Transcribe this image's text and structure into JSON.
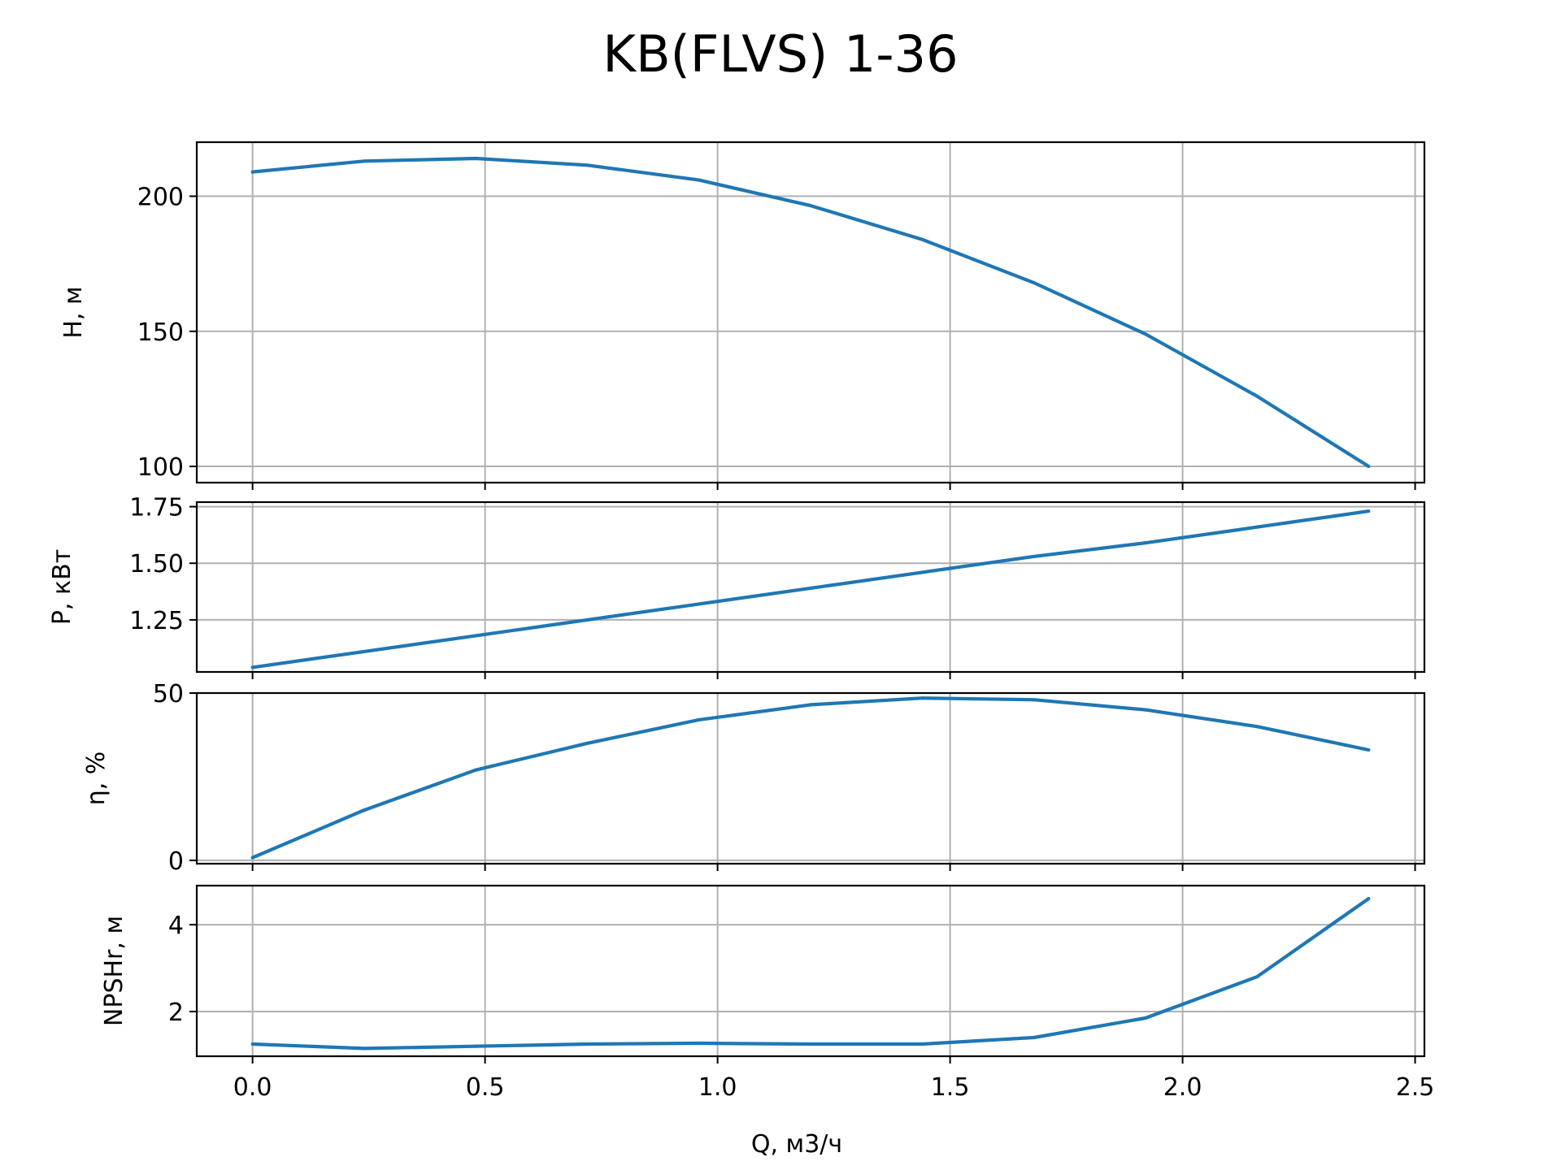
{
  "chart_data": {
    "type": "line",
    "title": "KB(FLVS) 1-36",
    "xlabel": "Q, м3/ч",
    "x_ticks": [
      "0.0",
      "0.5",
      "1.0",
      "1.5",
      "2.0",
      "2.5"
    ],
    "xlim": [
      -0.12,
      2.52
    ],
    "grid": true,
    "line_color": "#1f77b4",
    "x": [
      0.0,
      0.24,
      0.48,
      0.72,
      0.96,
      1.2,
      1.44,
      1.68,
      1.92,
      2.16,
      2.4
    ],
    "panels": [
      {
        "ylabel": "H, м",
        "ylim": [
          94,
          220
        ],
        "y_ticks": [
          "100",
          "150",
          "200"
        ],
        "values": [
          209,
          213,
          214,
          211.5,
          206,
          196.5,
          184,
          168,
          149,
          126,
          100
        ]
      },
      {
        "ylabel": "P, кВт",
        "ylim": [
          1.02,
          1.77
        ],
        "y_ticks": [
          "1.25",
          "1.50",
          "1.75"
        ],
        "values": [
          1.04,
          1.11,
          1.18,
          1.25,
          1.32,
          1.39,
          1.46,
          1.53,
          1.59,
          1.66,
          1.73
        ]
      },
      {
        "ylabel": "η, %",
        "ylim": [
          -1,
          50
        ],
        "y_ticks": [
          "0",
          "50"
        ],
        "values": [
          0.8,
          15,
          27,
          35,
          42,
          46.5,
          48.5,
          48,
          45,
          40,
          33
        ]
      },
      {
        "ylabel": "NPSHr, м",
        "ylim": [
          0.97,
          4.9
        ],
        "y_ticks": [
          "2",
          "4"
        ],
        "values": [
          1.25,
          1.15,
          1.2,
          1.25,
          1.27,
          1.25,
          1.25,
          1.4,
          1.85,
          2.8,
          4.6
        ]
      }
    ]
  }
}
